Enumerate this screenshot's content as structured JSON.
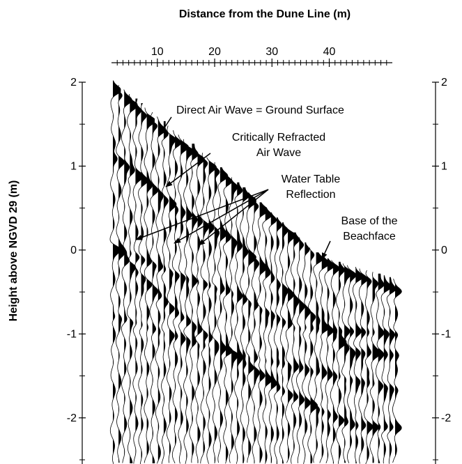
{
  "chart_data": {
    "type": "wiggle",
    "x_label": "Distance from the Dune Line (m)",
    "y_label": "Height above NGVD 29 (m)",
    "xlim": [
      2,
      51
    ],
    "xticks": [
      10,
      20,
      30,
      40
    ],
    "xminorticks": [
      3,
      4,
      5,
      6,
      7,
      8,
      9,
      11,
      12,
      13,
      14,
      15,
      16,
      17,
      18,
      19,
      21,
      22,
      23,
      24,
      25,
      26,
      27,
      28,
      29,
      31,
      32,
      33,
      34,
      35,
      36,
      37,
      38,
      39,
      41,
      42,
      43,
      44,
      45,
      46,
      47,
      48,
      49,
      50
    ],
    "ylim": [
      -2.55,
      2
    ],
    "yticks": [
      2,
      1,
      0,
      -1,
      -2
    ],
    "yminorticks": [
      1.5,
      0.5,
      -0.5,
      -1.5,
      -2.5
    ],
    "annotations": [
      {
        "lines": [
          "Direct Air Wave = Ground Surface"
        ]
      },
      {
        "lines": [
          "Critically Refracted",
          "Air Wave"
        ]
      },
      {
        "lines": [
          "Water Table",
          "Reflection"
        ]
      },
      {
        "lines": [
          "Base of the",
          "Beachface"
        ]
      }
    ]
  }
}
